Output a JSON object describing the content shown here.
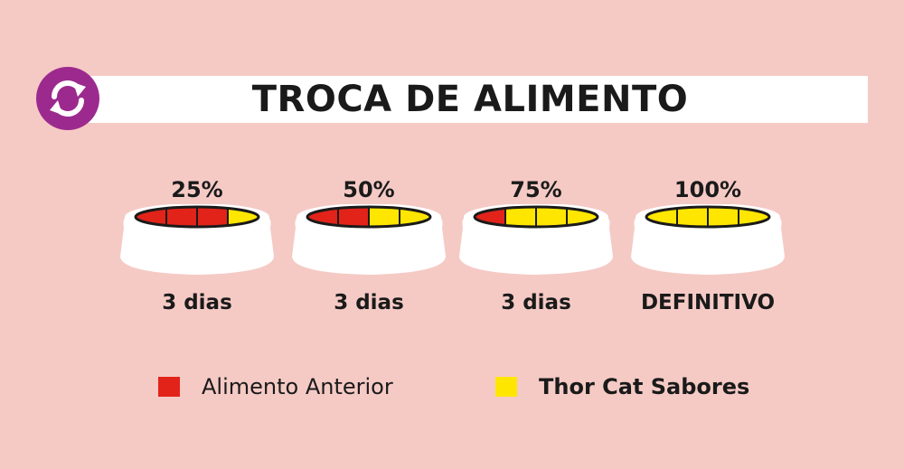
{
  "title": "TROCA DE ALIMENTO",
  "colors": {
    "background": "#f5cac5",
    "accent": "#9c2a8e",
    "previous_food": "#e2231a",
    "new_food": "#ffe600"
  },
  "bowls": [
    {
      "percent": "25%",
      "duration": "3 dias",
      "new_share": 0.25
    },
    {
      "percent": "50%",
      "duration": "3 dias",
      "new_share": 0.5
    },
    {
      "percent": "75%",
      "duration": "3 dias",
      "new_share": 0.75
    },
    {
      "percent": "100%",
      "duration": "DEFINITIVO",
      "new_share": 1.0
    }
  ],
  "legend": [
    {
      "label": "Alimento Anterior",
      "color": "#e2231a"
    },
    {
      "label": "Thor Cat Sabores",
      "color": "#ffe600"
    }
  ]
}
